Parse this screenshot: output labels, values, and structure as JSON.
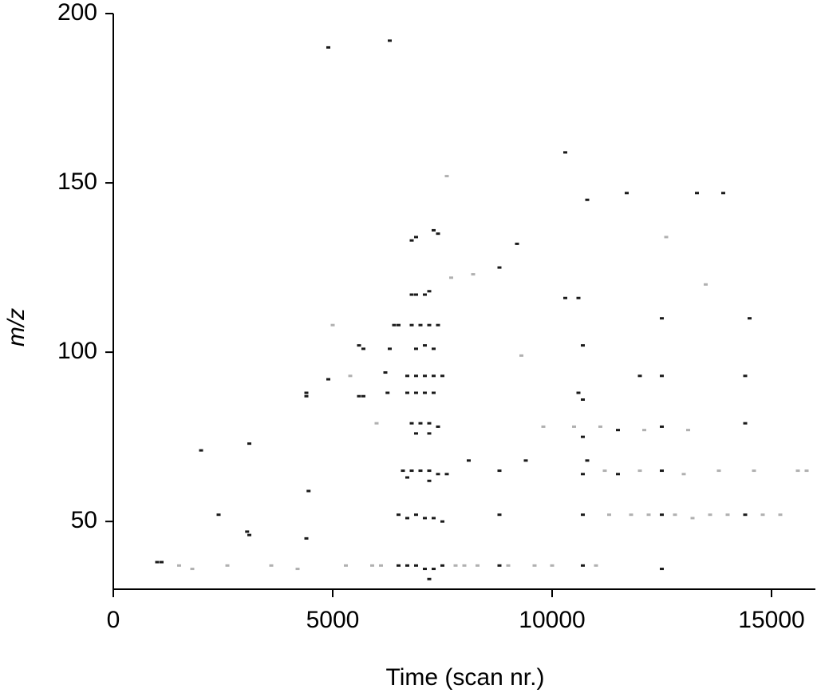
{
  "chart_data": {
    "type": "scatter",
    "x_label": "Time (scan nr.)",
    "y_label": "m/z",
    "xlim": [
      0,
      16000
    ],
    "ylim": [
      30,
      200
    ],
    "xticks": [
      0,
      5000,
      10000,
      15000
    ],
    "yticks": [
      50,
      100,
      150,
      200
    ],
    "grid": false,
    "series": [
      {
        "color": "#1a1a1a",
        "x": [
          1000,
          1100,
          2000,
          2400,
          3100,
          3100,
          3050,
          4400,
          4400,
          4450,
          4400,
          4900,
          5600,
          5700,
          5600,
          5700,
          6200,
          6250,
          6300,
          6400,
          6500,
          6800,
          6900,
          7100,
          7200,
          6800,
          7000,
          7200,
          7400,
          6900,
          7100,
          7300,
          6700,
          6900,
          7100,
          7300,
          7500,
          6700,
          6900,
          7100,
          7300,
          6800,
          7000,
          7200,
          7400,
          6900,
          7200,
          6600,
          6800,
          7000,
          7200,
          7400,
          7600,
          6700,
          7200,
          6500,
          6700,
          6900,
          7100,
          7300,
          7500,
          6500,
          6700,
          6900,
          7100,
          7300,
          7500,
          7200,
          7400,
          6900,
          6800,
          8800,
          9200,
          10300,
          10800,
          11700,
          13300,
          13900,
          10300,
          10600,
          10700,
          10600,
          10700,
          10700,
          10700,
          10700,
          10700,
          8800,
          8800,
          8800,
          11500,
          12500,
          12500,
          11500,
          12500,
          12500,
          12000,
          12500,
          14400,
          14500,
          12500,
          14400,
          14400,
          9400,
          10800,
          8100,
          6300,
          4900,
          7300
        ],
        "y": [
          38,
          38,
          71,
          52,
          73,
          46,
          47,
          88,
          87,
          59,
          45,
          92,
          102,
          101,
          87,
          87,
          94,
          88,
          101,
          108,
          108,
          117,
          117,
          117,
          118,
          108,
          108,
          108,
          108,
          101,
          102,
          101,
          93,
          93,
          93,
          93,
          93,
          88,
          88,
          88,
          88,
          79,
          79,
          79,
          78,
          76,
          76,
          65,
          65,
          65,
          65,
          64,
          64,
          63,
          62,
          52,
          51,
          52,
          51,
          51,
          50,
          37,
          37,
          37,
          36,
          36,
          37,
          33,
          135,
          134,
          133,
          125,
          132,
          159,
          145,
          147,
          147,
          147,
          116,
          116,
          102,
          88,
          86,
          75,
          64,
          52,
          37,
          37,
          65,
          52,
          77,
          78,
          65,
          64,
          52,
          36,
          93,
          93,
          93,
          110,
          110,
          52,
          79,
          68,
          68,
          68,
          192,
          190,
          136
        ]
      },
      {
        "color": "#b0b0b0",
        "x": [
          1500,
          1800,
          2600,
          3600,
          4200,
          5300,
          5900,
          6100,
          7800,
          8000,
          8300,
          9000,
          9600,
          10000,
          11000,
          11300,
          11800,
          12200,
          12800,
          13200,
          13600,
          14000,
          14800,
          15200,
          15600,
          11200,
          12000,
          13000,
          13800,
          14600,
          9800,
          10500,
          11100,
          12100,
          13100,
          5000,
          5400,
          6000,
          7700,
          8200,
          9300,
          13500,
          15800,
          7600,
          12600
        ],
        "y": [
          37,
          36,
          37,
          37,
          36,
          37,
          37,
          37,
          37,
          37,
          37,
          37,
          37,
          37,
          37,
          52,
          52,
          52,
          52,
          51,
          52,
          52,
          52,
          52,
          65,
          65,
          65,
          64,
          65,
          65,
          78,
          78,
          78,
          77,
          77,
          108,
          93,
          79,
          122,
          123,
          99,
          120,
          65,
          152,
          134
        ]
      }
    ]
  }
}
